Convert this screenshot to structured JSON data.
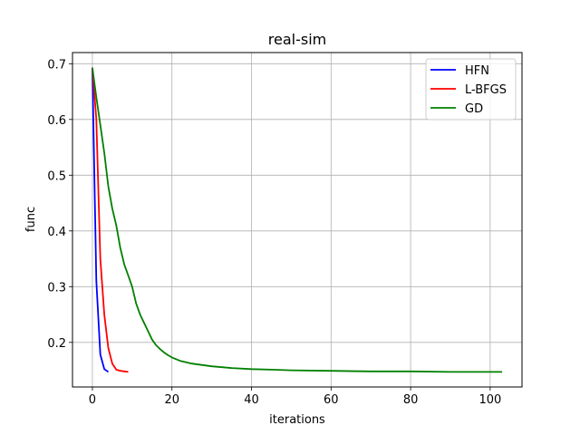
{
  "chart_data": {
    "type": "line",
    "title": "real-sim",
    "xlabel": "iterations",
    "ylabel": "func",
    "xlim": [
      -5,
      108
    ],
    "ylim": [
      0.12,
      0.72
    ],
    "xticks": [
      0,
      20,
      40,
      60,
      80,
      100
    ],
    "yticks": [
      0.2,
      0.3,
      0.4,
      0.5,
      0.6,
      0.7
    ],
    "grid": true,
    "legend_position": "top-right",
    "series": [
      {
        "name": "HFN",
        "color": "#0000ff",
        "x": [
          0,
          1,
          2,
          3,
          4
        ],
        "y": [
          0.693,
          0.31,
          0.178,
          0.152,
          0.147
        ]
      },
      {
        "name": "L-BFGS",
        "color": "#ff0000",
        "x": [
          0,
          1,
          2,
          3,
          4,
          5,
          6,
          7,
          8,
          9
        ],
        "y": [
          0.693,
          0.6,
          0.35,
          0.25,
          0.19,
          0.162,
          0.151,
          0.149,
          0.148,
          0.147
        ]
      },
      {
        "name": "GD",
        "color": "#008000",
        "x": [
          0,
          1,
          2,
          3,
          4,
          5,
          6,
          7,
          8,
          9,
          10,
          11,
          12,
          13,
          14,
          15,
          16,
          17,
          18,
          19,
          20,
          22,
          25,
          30,
          35,
          40,
          45,
          50,
          60,
          70,
          80,
          90,
          100,
          103
        ],
        "y": [
          0.693,
          0.64,
          0.59,
          0.54,
          0.48,
          0.44,
          0.41,
          0.37,
          0.34,
          0.32,
          0.3,
          0.27,
          0.25,
          0.235,
          0.22,
          0.205,
          0.195,
          0.188,
          0.182,
          0.177,
          0.173,
          0.167,
          0.162,
          0.157,
          0.154,
          0.152,
          0.151,
          0.15,
          0.149,
          0.148,
          0.148,
          0.147,
          0.147,
          0.147
        ]
      }
    ]
  }
}
